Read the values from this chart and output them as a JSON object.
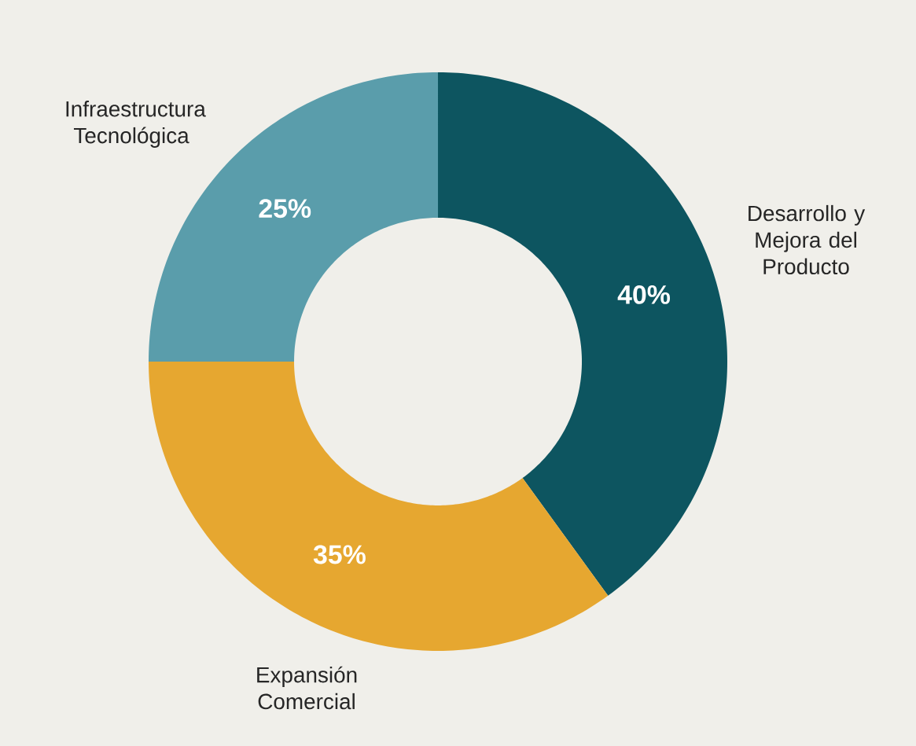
{
  "chart_data": {
    "type": "donut",
    "categories": [
      "Desarrollo y Mejora del Producto",
      "Expansión Comercial",
      "Infraestructura Tecnológica"
    ],
    "values": [
      40,
      35,
      25
    ],
    "value_labels": [
      "40%",
      "35%",
      "25%"
    ],
    "colors": [
      "#0d5560",
      "#e6a730",
      "#5a9dab"
    ]
  }
}
